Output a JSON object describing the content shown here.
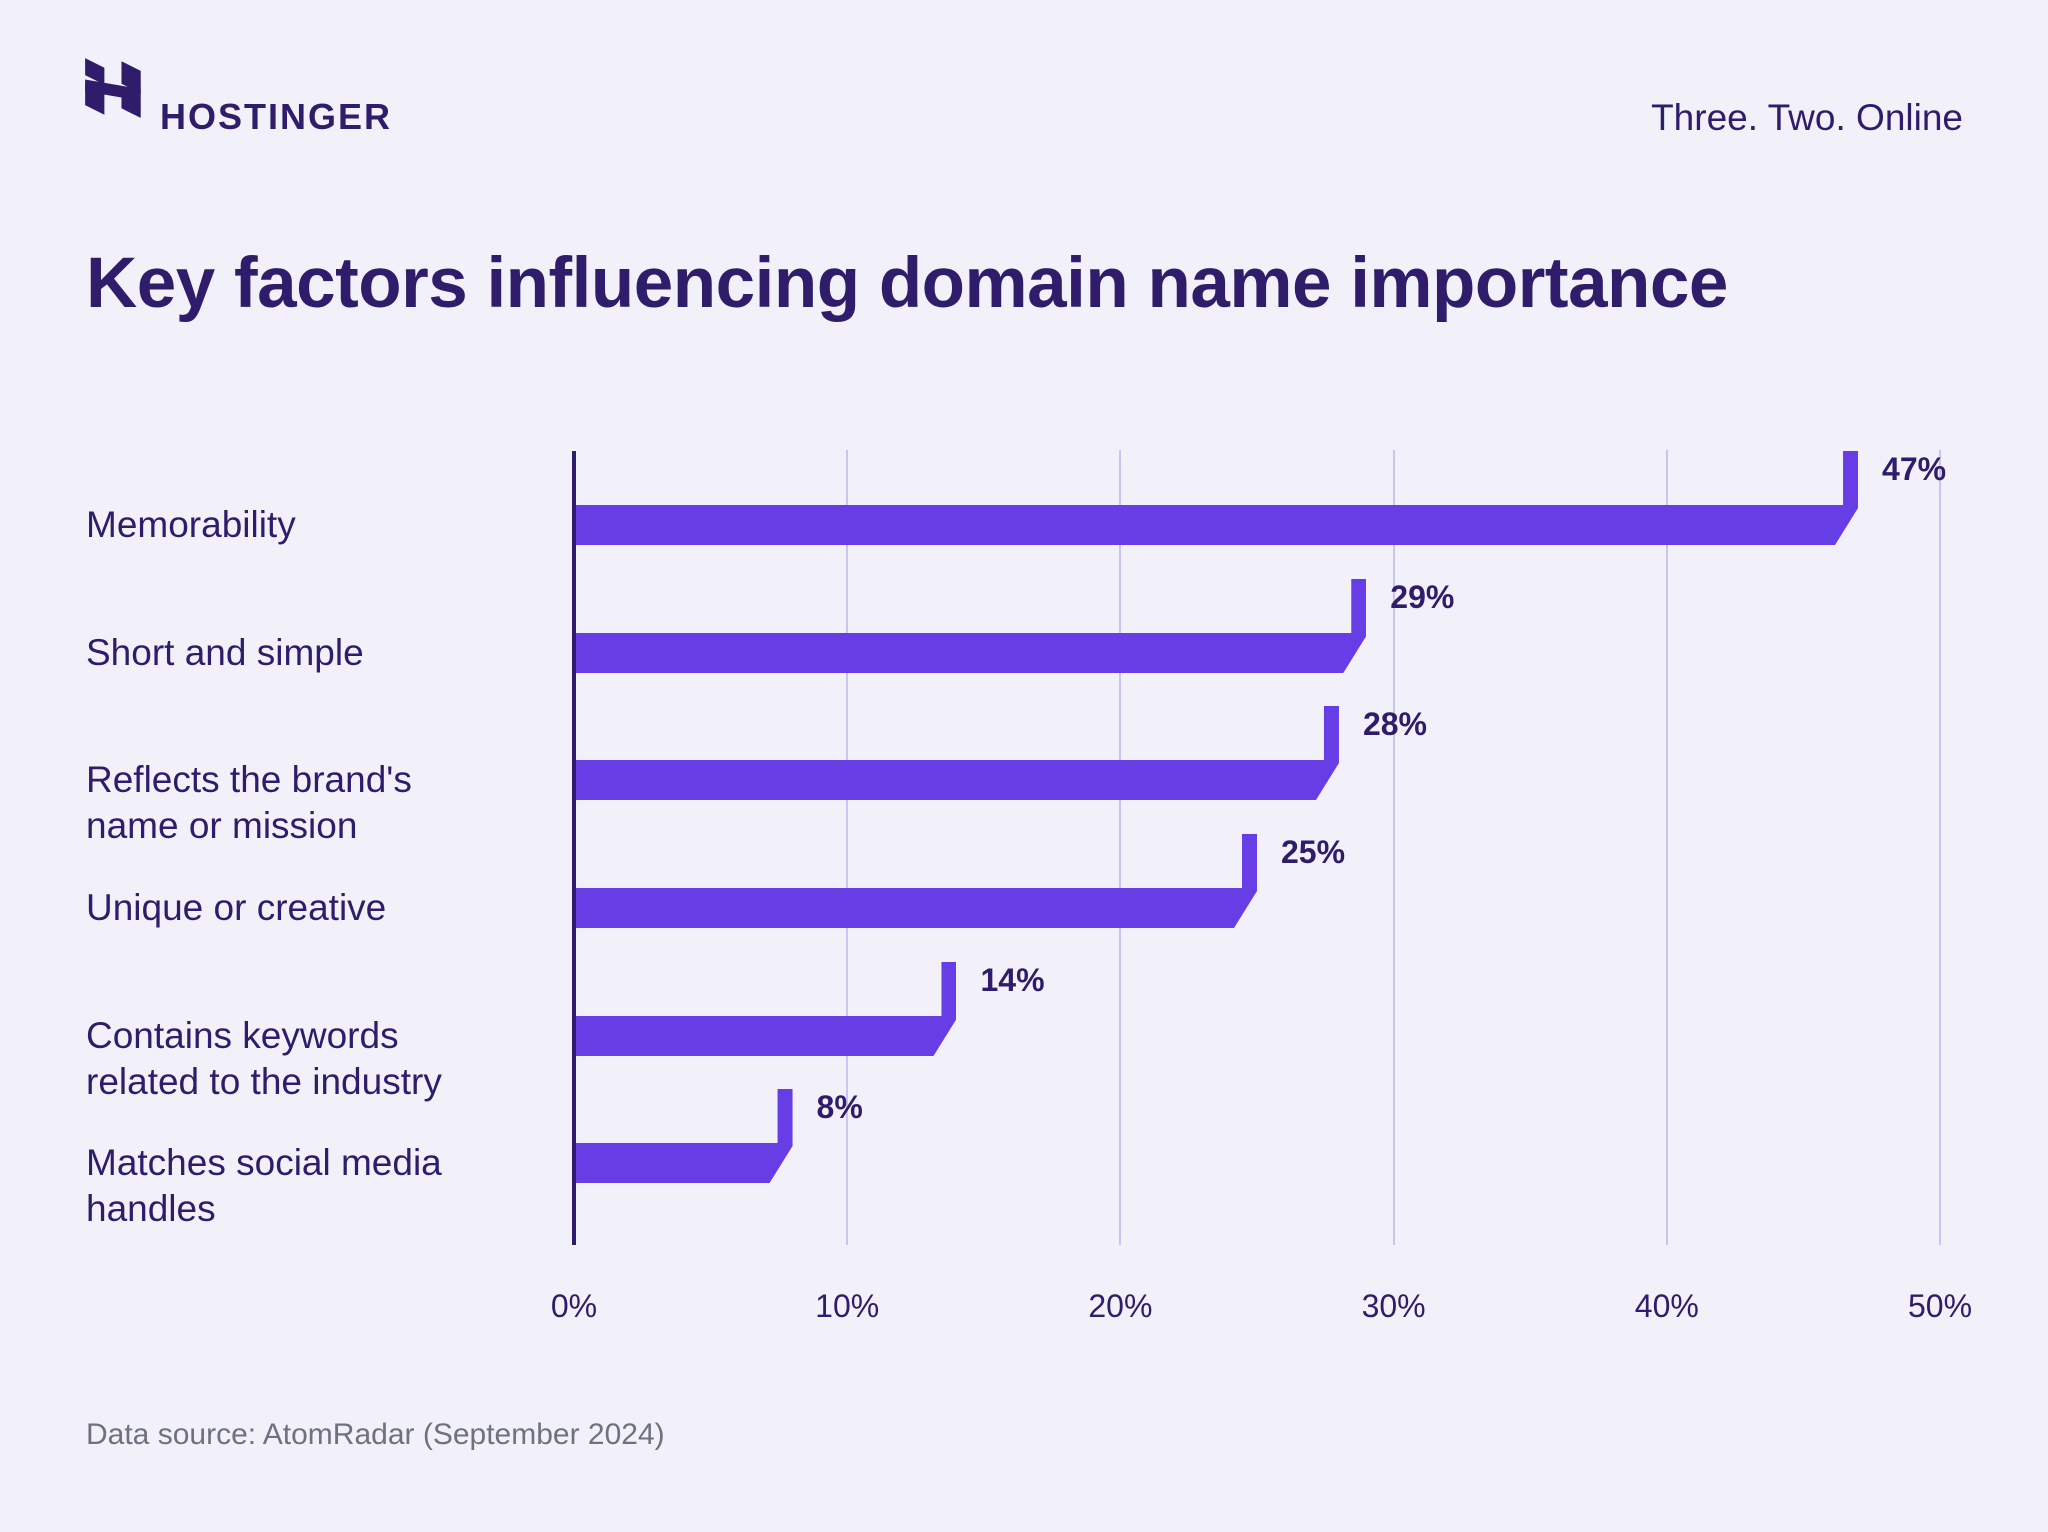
{
  "header": {
    "brand": "HOSTINGER",
    "tagline": "Three. Two. Online"
  },
  "title": "Key factors influencing domain name importance",
  "chart_data": {
    "type": "bar",
    "orientation": "horizontal",
    "title": "Key factors influencing domain name importance",
    "categories": [
      "Memorability",
      "Short and simple",
      "Reflects the brand's\nname or mission",
      "Unique or creative",
      "Contains keywords\nrelated to the industry",
      "Matches social media\nhandles"
    ],
    "values": [
      47,
      29,
      28,
      25,
      14,
      8
    ],
    "value_labels": [
      "47%",
      "29%",
      "28%",
      "25%",
      "14%",
      "8%"
    ],
    "xlim": [
      0,
      50
    ],
    "x_tick_values": [
      0,
      10,
      20,
      30,
      40,
      50
    ],
    "x_ticks": [
      "0%",
      "10%",
      "20%",
      "30%",
      "40%",
      "50%"
    ],
    "grid": "vertical-gridlines",
    "legend": "none",
    "bar_color": "#673DE6",
    "axis_color": "#2F1C6A",
    "gridline_color": "#C9C5F1",
    "label_color": "#2F1C6A"
  },
  "source": "Data source: AtomRadar (September 2024)"
}
